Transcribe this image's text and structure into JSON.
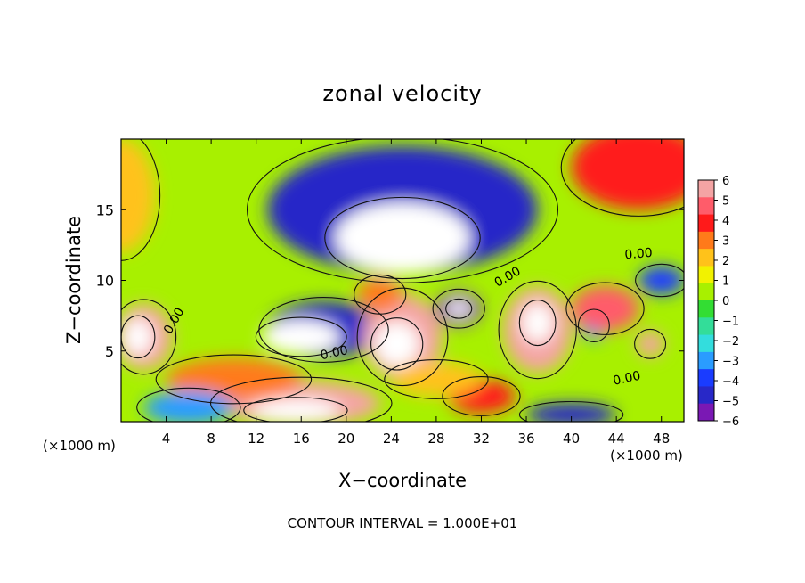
{
  "chart_data": {
    "type": "heatmap",
    "title": "zonal velocity",
    "xlabel": "X−coordinate",
    "ylabel": "Z−coordinate",
    "x_scale_label": "(×1000 m)",
    "z_scale_label": "(×1000 m)",
    "footer": "CONTOUR INTERVAL = 1.000E+01",
    "xlim": [
      0,
      50
    ],
    "ylim": [
      0,
      20
    ],
    "x_ticks": [
      4,
      8,
      12,
      16,
      20,
      24,
      28,
      32,
      36,
      40,
      44,
      48
    ],
    "y_ticks": [
      5,
      10,
      15
    ],
    "colorbar": {
      "ticks": [
        "6",
        "5",
        "4",
        "3",
        "2",
        "1",
        "0",
        "−1",
        "−2",
        "−3",
        "−4",
        "−5",
        "−6"
      ],
      "colors": [
        "#f4a4a4",
        "#ff5c6a",
        "#ff1a1a",
        "#ff7a1a",
        "#ffc21a",
        "#f2f200",
        "#a8f000",
        "#33dd33",
        "#33dd99",
        "#33dddd",
        "#2a9cff",
        "#1a3cff",
        "#2828c8",
        "#7a18b4"
      ]
    },
    "contour_labels": [
      {
        "text": "0.00",
        "x": 5.0,
        "z": 7.0,
        "angle": -60
      },
      {
        "text": "0.00",
        "x": 19.0,
        "z": 4.6,
        "angle": -12
      },
      {
        "text": "0.00",
        "x": 34.5,
        "z": 10.0,
        "angle": -30
      },
      {
        "text": "0.00",
        "x": 45.0,
        "z": 2.8,
        "angle": -12
      },
      {
        "text": "0.00",
        "x": 46.0,
        "z": 11.6,
        "angle": -5
      }
    ],
    "field_blobs": [
      {
        "x": 25,
        "z": 15,
        "rx": 12,
        "rz": 4.5,
        "v": -4.5
      },
      {
        "x": 25,
        "z": 13,
        "rx": 6,
        "rz": 2.5,
        "v": -8
      },
      {
        "x": 18,
        "z": 6.5,
        "rx": 5,
        "rz": 2,
        "v": -5
      },
      {
        "x": 16,
        "z": 6,
        "rx": 3.5,
        "rz": 1.2,
        "v": -8
      },
      {
        "x": 30,
        "z": 8,
        "rx": 2,
        "rz": 1.2,
        "v": -6
      },
      {
        "x": 30,
        "z": 8,
        "rx": 1,
        "rz": 0.6,
        "v": -8
      },
      {
        "x": 48,
        "z": 10,
        "rx": 2,
        "rz": 1,
        "v": -4
      },
      {
        "x": 42,
        "z": 6.8,
        "rx": 1.2,
        "rz": 1,
        "v": -3
      },
      {
        "x": 25,
        "z": 6,
        "rx": 3.5,
        "rz": 3,
        "v": 6
      },
      {
        "x": 24.5,
        "z": 5.5,
        "rx": 2,
        "rz": 1.6,
        "v": 8
      },
      {
        "x": 37,
        "z": 6.5,
        "rx": 3,
        "rz": 3,
        "v": 6
      },
      {
        "x": 37,
        "z": 7,
        "rx": 1.4,
        "rz": 1.4,
        "v": 8
      },
      {
        "x": 2,
        "z": 6,
        "rx": 2.5,
        "rz": 2.3,
        "v": 6
      },
      {
        "x": 1.5,
        "z": 6,
        "rx": 1.3,
        "rz": 1.3,
        "v": 8
      },
      {
        "x": 47,
        "z": 5.5,
        "rx": 1.2,
        "rz": 0.9,
        "v": 6
      },
      {
        "x": 43,
        "z": 8,
        "rx": 3,
        "rz": 1.6,
        "v": 4.5
      },
      {
        "x": 16,
        "z": 1.3,
        "rx": 7,
        "rz": 1.6,
        "v": 6
      },
      {
        "x": 15.5,
        "z": 0.8,
        "rx": 4,
        "rz": 0.8,
        "v": 8
      },
      {
        "x": 23,
        "z": 9,
        "rx": 2,
        "rz": 1.2,
        "v": 3
      },
      {
        "x": 32,
        "z": 1.8,
        "rx": 3,
        "rz": 1.2,
        "v": 4
      },
      {
        "x": 46,
        "z": 18,
        "rx": 6,
        "rz": 3,
        "v": 3.5
      },
      {
        "x": 0,
        "z": 16,
        "rx": 3,
        "rz": 4,
        "v": 2
      },
      {
        "x": 10,
        "z": 3,
        "rx": 6,
        "rz": 1.5,
        "v": 3
      },
      {
        "x": 6,
        "z": 1,
        "rx": 4,
        "rz": 1.2,
        "v": -3
      },
      {
        "x": 28,
        "z": 3,
        "rx": 4,
        "rz": 1.2,
        "v": 2
      },
      {
        "x": 40,
        "z": 0.5,
        "rx": 4,
        "rz": 0.8,
        "v": -5
      }
    ]
  }
}
